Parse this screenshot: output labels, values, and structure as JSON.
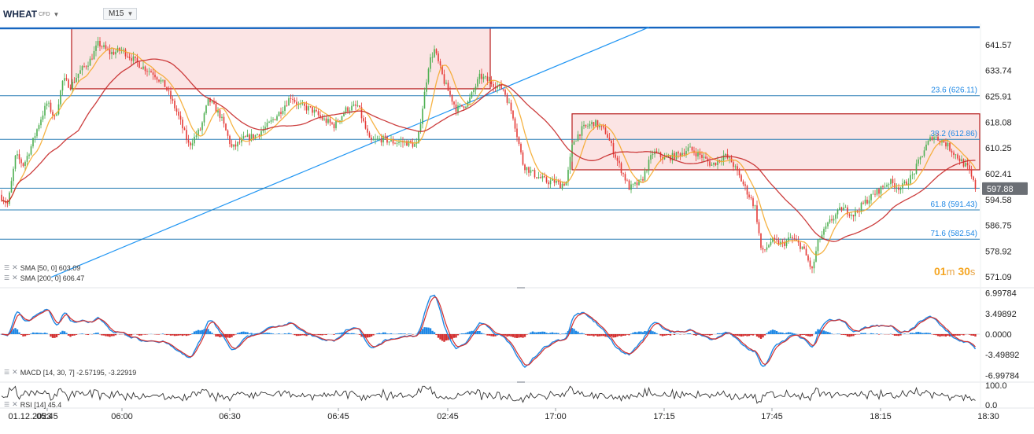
{
  "header": {
    "symbol": "WHEAT",
    "symbol_type": "CFD",
    "timeframe": "M15"
  },
  "timer": {
    "minutes": "01",
    "minutes_unit": "m",
    "seconds": "30",
    "seconds_unit": "s"
  },
  "colors": {
    "up": "#4caf50",
    "down": "#e53935",
    "sma50": "#f5a623",
    "sma200": "#c62828",
    "trend": "#2196f3",
    "fib": "#1e88e5",
    "zone_fill": "#fbe3e3",
    "zone_border": "#b71c1c",
    "macd_line": "#1e88e5",
    "macd_signal": "#d32f2f",
    "rsi": "#333333",
    "price_tag": "#6b6f75"
  },
  "indicators": {
    "sma50": "SMA [50, 0] 603.09",
    "sma200": "SMA [200, 0] 606.47",
    "macd": "MACD [14, 30, 7] -2.57195, -3.22919",
    "rsi": "RSI [14] 45.4"
  },
  "chart_data": [
    {
      "type": "candlestick",
      "panel": "price",
      "symbol": "WHEAT",
      "timeframe": "M15",
      "ylim": [
        568.5,
        648.0
      ],
      "y_ticks": [
        "641.57",
        "633.74",
        "625.91",
        "618.08",
        "610.25",
        "602.41",
        "594.58",
        "586.75",
        "578.92",
        "571.09"
      ],
      "current_price": "597.88",
      "x_tick_labels": [
        "01.12.2023",
        "05:45",
        "06:00",
        "06:30",
        "06:45",
        "02:45",
        "17:00",
        "17:15",
        "17:45",
        "18:15",
        "18:30"
      ],
      "fib_levels": [
        {
          "label": "23.6 (626.11)",
          "value": 626.11
        },
        {
          "label": "38.2 (612.86)",
          "value": 612.86
        },
        {
          "label": "61.8 (591.43)",
          "value": 591.43
        },
        {
          "label": "71.6 (582.54)",
          "value": 582.54
        }
      ],
      "extra_levels": [
        598.0
      ],
      "resistance_top": 646.9,
      "zones": [
        {
          "x_from": 91,
          "x_to": 623,
          "y_top": 646.6,
          "y_bottom": 628.2
        },
        {
          "x_from": 727,
          "x_to": 1245,
          "y_top": 620.6,
          "y_bottom": 603.6
        }
      ],
      "trendline": {
        "x_from": 0,
        "y_from": 571.0,
        "x_to": 825,
        "y_to": 646.9
      },
      "series": [
        {
          "name": "SMA [50, 0]",
          "last": 603.09
        },
        {
          "name": "SMA [200, 0]",
          "last": 606.47
        }
      ],
      "path_anchors": [
        [
          0,
          596
        ],
        [
          10,
          593
        ],
        [
          20,
          608
        ],
        [
          30,
          605
        ],
        [
          40,
          611
        ],
        [
          50,
          618
        ],
        [
          60,
          624
        ],
        [
          70,
          619
        ],
        [
          80,
          631
        ],
        [
          90,
          629
        ],
        [
          100,
          633
        ],
        [
          115,
          637
        ],
        [
          125,
          642
        ],
        [
          140,
          639
        ],
        [
          155,
          640
        ],
        [
          170,
          637
        ],
        [
          180,
          635
        ],
        [
          195,
          633
        ],
        [
          210,
          629
        ],
        [
          225,
          621
        ],
        [
          240,
          611
        ],
        [
          255,
          616
        ],
        [
          265,
          625
        ],
        [
          280,
          620
        ],
        [
          295,
          610
        ],
        [
          310,
          613
        ],
        [
          325,
          614
        ],
        [
          340,
          617
        ],
        [
          355,
          621
        ],
        [
          370,
          626
        ],
        [
          380,
          623
        ],
        [
          395,
          622
        ],
        [
          410,
          619
        ],
        [
          425,
          617
        ],
        [
          440,
          622
        ],
        [
          455,
          623
        ],
        [
          470,
          612
        ],
        [
          485,
          613
        ],
        [
          500,
          612
        ],
        [
          515,
          612
        ],
        [
          530,
          611
        ],
        [
          545,
          636
        ],
        [
          552,
          640
        ],
        [
          565,
          630
        ],
        [
          580,
          622
        ],
        [
          595,
          624
        ],
        [
          610,
          632
        ],
        [
          625,
          630
        ],
        [
          640,
          628
        ],
        [
          652,
          620
        ],
        [
          665,
          605
        ],
        [
          680,
          602
        ],
        [
          695,
          600
        ],
        [
          705,
          600
        ],
        [
          712,
          599
        ],
        [
          720,
          600
        ],
        [
          728,
          612
        ],
        [
          740,
          616
        ],
        [
          755,
          618
        ],
        [
          770,
          615
        ],
        [
          785,
          606
        ],
        [
          800,
          598
        ],
        [
          815,
          600
        ],
        [
          830,
          609
        ],
        [
          845,
          607
        ],
        [
          860,
          608
        ],
        [
          875,
          610
        ],
        [
          890,
          608
        ],
        [
          905,
          605
        ],
        [
          920,
          608
        ],
        [
          930,
          606
        ],
        [
          945,
          599
        ],
        [
          960,
          592
        ],
        [
          968,
          578
        ],
        [
          980,
          582
        ],
        [
          995,
          581
        ],
        [
          1005,
          583
        ],
        [
          1020,
          580
        ],
        [
          1032,
          573
        ],
        [
          1040,
          582
        ],
        [
          1055,
          588
        ],
        [
          1070,
          592
        ],
        [
          1085,
          590
        ],
        [
          1100,
          594
        ],
        [
          1115,
          597
        ],
        [
          1130,
          600
        ],
        [
          1145,
          598
        ],
        [
          1160,
          602
        ],
        [
          1175,
          610
        ],
        [
          1185,
          614
        ],
        [
          1200,
          612
        ],
        [
          1215,
          608
        ],
        [
          1230,
          604
        ],
        [
          1240,
          597.88
        ]
      ]
    },
    {
      "type": "histogram+line",
      "panel": "MACD",
      "params": "[14, 30, 7]",
      "macd_value": -2.57195,
      "signal_value": -3.22919,
      "ylim": [
        -7.6,
        7.6
      ],
      "y_ticks": [
        "6.99784",
        "3.49892",
        "0.0000",
        "-3.49892",
        "-6.99784"
      ]
    },
    {
      "type": "line",
      "panel": "RSI",
      "params": "[14]",
      "value": 45.4,
      "ylim": [
        0,
        100
      ],
      "y_ticks": [
        "100.0",
        "0.0"
      ]
    }
  ]
}
